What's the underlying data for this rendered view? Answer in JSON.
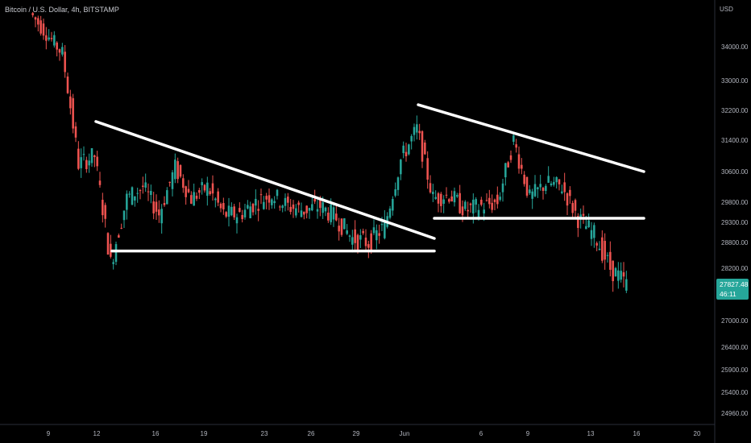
{
  "header": {
    "title": "Bitcoin / U.S. Dollar, 4h, BITSTAMP"
  },
  "price_axis": {
    "currency": "USD",
    "ticks": [
      "34000.00",
      "33000.00",
      "32200.00",
      "31400.00",
      "30600.00",
      "29800.00",
      "29300.00",
      "28800.00",
      "28200.00",
      "27000.00",
      "26400.00",
      "25900.00",
      "25400.00",
      "24960.00"
    ]
  },
  "time_axis": {
    "ticks": [
      "9",
      "12",
      "16",
      "19",
      "23",
      "26",
      "29",
      "Jun",
      "6",
      "9",
      "13",
      "16",
      "20"
    ]
  },
  "last_price": {
    "price": "27827.48",
    "countdown": "46:11"
  },
  "colors": {
    "background": "#000000",
    "bullish": "#26a69a",
    "bearish": "#ef5350",
    "trendlines": "#ffffff",
    "axis_text": "#b2b5be"
  },
  "chart_data": {
    "type": "candlestick",
    "symbol": "BTCUSD",
    "timeframe": "4h",
    "exchange": "BITSTAMP",
    "currency": "USD",
    "ylim": [
      24700,
      35000
    ],
    "close_points": [
      {
        "x": "May 7",
        "y": 35000
      },
      {
        "x": "May 8",
        "y": 34400
      },
      {
        "x": "May 9",
        "y": 33800
      },
      {
        "x": "May 10",
        "y": 30800
      },
      {
        "x": "May 11",
        "y": 31000
      },
      {
        "x": "May 12",
        "y": 28300
      },
      {
        "x": "May 13",
        "y": 29900
      },
      {
        "x": "May 14",
        "y": 30200
      },
      {
        "x": "May 15",
        "y": 29500
      },
      {
        "x": "May 16",
        "y": 30700
      },
      {
        "x": "May 17",
        "y": 29900
      },
      {
        "x": "May 18",
        "y": 30200
      },
      {
        "x": "May 19",
        "y": 29500
      },
      {
        "x": "May 20",
        "y": 29500
      },
      {
        "x": "May 21",
        "y": 29800
      },
      {
        "x": "May 22",
        "y": 30000
      },
      {
        "x": "May 23",
        "y": 29700
      },
      {
        "x": "May 24",
        "y": 29600
      },
      {
        "x": "May 25",
        "y": 29700
      },
      {
        "x": "May 26",
        "y": 29400
      },
      {
        "x": "May 27",
        "y": 28900
      },
      {
        "x": "May 28",
        "y": 28800
      },
      {
        "x": "May 29",
        "y": 29200
      },
      {
        "x": "May 30",
        "y": 30900
      },
      {
        "x": "May 31",
        "y": 31700
      },
      {
        "x": "Jun 1",
        "y": 29900
      },
      {
        "x": "Jun 2",
        "y": 30000
      },
      {
        "x": "Jun 3",
        "y": 29600
      },
      {
        "x": "Jun 4",
        "y": 29700
      },
      {
        "x": "Jun 5",
        "y": 29800
      },
      {
        "x": "Jun 6",
        "y": 31400
      },
      {
        "x": "Jun 7",
        "y": 29900
      },
      {
        "x": "Jun 8",
        "y": 30300
      },
      {
        "x": "Jun 9",
        "y": 30200
      },
      {
        "x": "Jun 10",
        "y": 29400
      },
      {
        "x": "Jun 11",
        "y": 29000
      },
      {
        "x": "Jun 12",
        "y": 28200
      },
      {
        "x": "Jun 13",
        "y": 27827.48
      }
    ],
    "trendlines": [
      {
        "name": "descending-resistance-1",
        "from": {
          "x": "May 11",
          "y": 31900
        },
        "to": {
          "x": "Jun 1",
          "y": 28900
        }
      },
      {
        "name": "horizontal-support-1",
        "from": {
          "x": "May 12",
          "y": 28600
        },
        "to": {
          "x": "Jun 1",
          "y": 28600
        }
      },
      {
        "name": "descending-resistance-2",
        "from": {
          "x": "May 31",
          "y": 32350
        },
        "to": {
          "x": "Jun 14",
          "y": 30600
        }
      },
      {
        "name": "horizontal-support-2",
        "from": {
          "x": "Jun 1",
          "y": 29400
        },
        "to": {
          "x": "Jun 14",
          "y": 29400
        }
      }
    ],
    "grid": false,
    "legend": "none"
  }
}
